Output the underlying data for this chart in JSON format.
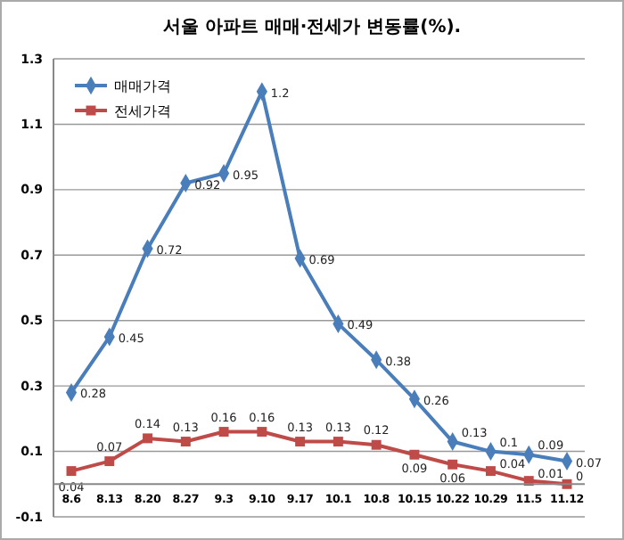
{
  "chart_data": {
    "type": "line",
    "title": "서울 아파트 매매·전세가 변동률(%).",
    "categories": [
      "8.6",
      "8.13",
      "8.20",
      "8.27",
      "9.3",
      "9.10",
      "9.17",
      "10.1",
      "10.8",
      "10.15",
      "10.22",
      "10.29",
      "11.5",
      "11.12"
    ],
    "series": [
      {
        "name": "매매가격",
        "color": "#4a7ebb",
        "marker": "diamond",
        "values": [
          0.28,
          0.45,
          0.72,
          0.92,
          0.95,
          1.2,
          0.69,
          0.49,
          0.38,
          0.26,
          0.13,
          0.1,
          0.09,
          0.07
        ]
      },
      {
        "name": "전세가격",
        "color": "#be4b48",
        "marker": "square",
        "values": [
          0.04,
          0.07,
          0.14,
          0.13,
          0.16,
          0.16,
          0.13,
          0.13,
          0.12,
          0.09,
          0.06,
          0.04,
          0.01,
          0
        ]
      }
    ],
    "ylim": [
      -0.1,
      1.3
    ],
    "yticks": [
      -0.1,
      0.1,
      0.3,
      0.5,
      0.7,
      0.9,
      1.1,
      1.3
    ],
    "grid": "y",
    "legend": "top left",
    "data_labels": true
  }
}
